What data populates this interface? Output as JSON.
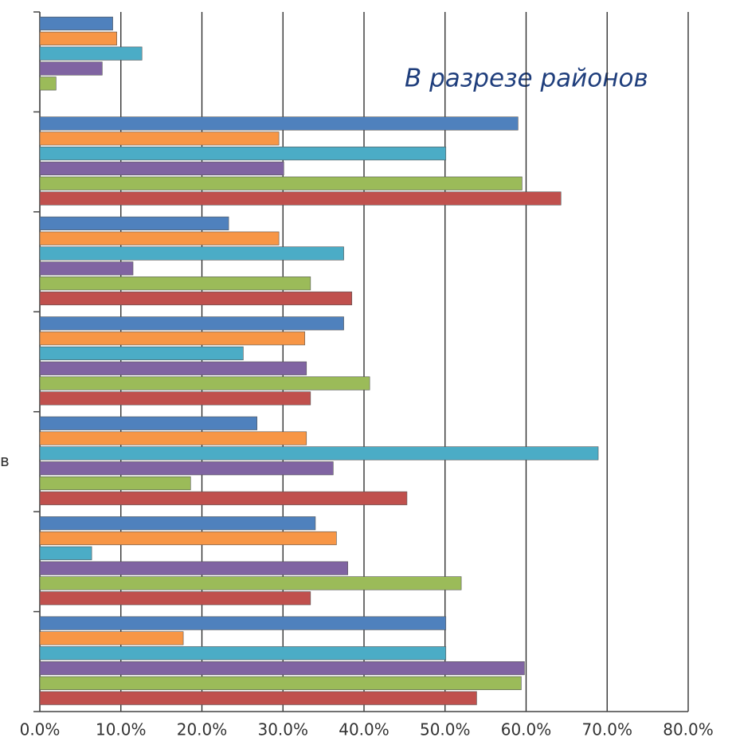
{
  "chart_data": {
    "type": "barh",
    "title": "В разрезе районов",
    "categories": [
      null,
      null,
      null,
      null,
      "в",
      null,
      null
    ],
    "series": [
      {
        "color": "#4f81bd",
        "values": [
          9.0,
          59.0,
          23.3,
          37.5,
          26.8,
          34.0,
          50.1
        ]
      },
      {
        "color": "#f79646",
        "values": [
          9.5,
          29.5,
          29.5,
          32.7,
          32.9,
          36.6,
          17.7
        ]
      },
      {
        "color": "#4bacc6",
        "values": [
          12.6,
          50.1,
          37.5,
          25.1,
          68.9,
          6.4,
          50.1
        ]
      },
      {
        "color": "#8064a2",
        "values": [
          7.7,
          30.1,
          11.5,
          32.9,
          36.2,
          38.0,
          59.8
        ]
      },
      {
        "color": "#9bbb59",
        "values": [
          2.0,
          59.5,
          33.4,
          40.7,
          18.6,
          52.0,
          59.4
        ]
      },
      {
        "color": "#c0504d",
        "values": [
          null,
          64.3,
          38.5,
          33.4,
          45.3,
          33.4,
          53.9
        ]
      }
    ],
    "xlim": [
      0,
      80
    ],
    "xticks": [
      {
        "value": 0,
        "label": "0.0%"
      },
      {
        "value": 10,
        "label": "10.0%"
      },
      {
        "value": 20,
        "label": "20.0%"
      },
      {
        "value": 30,
        "label": "30.0%"
      },
      {
        "value": 40,
        "label": "40.0%"
      },
      {
        "value": 50,
        "label": "50.0%"
      },
      {
        "value": 60,
        "label": "60.0%"
      },
      {
        "value": 70,
        "label": "70.0%"
      },
      {
        "value": 80,
        "label": "80.0%"
      }
    ],
    "grid": true
  }
}
